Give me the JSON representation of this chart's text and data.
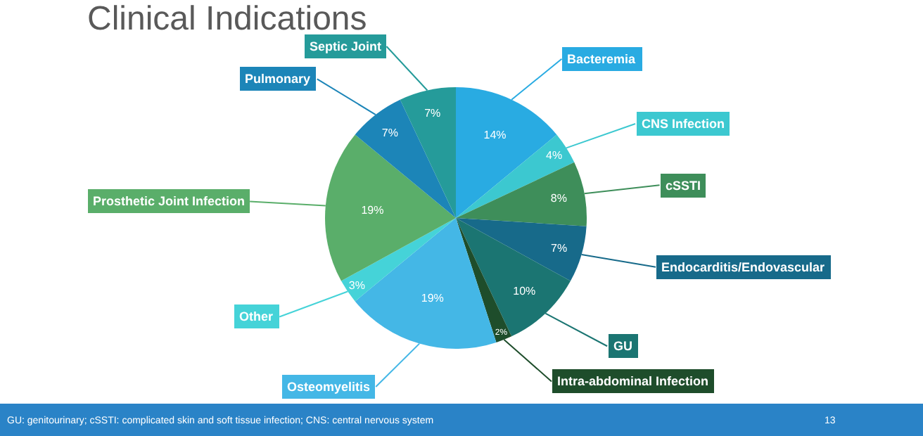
{
  "chart_data": {
    "type": "pie",
    "title": "Clinical Indications",
    "categories": [
      "Bacteremia",
      "CNS Infection",
      "cSSTI",
      "Endocarditis/Endovascular",
      "GU",
      "Intra-abdominal Infection",
      "Osteomyelitis",
      "Other",
      "Prosthetic Joint Infection",
      "Pulmonary",
      "Septic Joint"
    ],
    "values": [
      14,
      4,
      8,
      7,
      10,
      2,
      19,
      3,
      19,
      7,
      7
    ],
    "value_labels": [
      "14%",
      "4%",
      "8%",
      "7%",
      "10%",
      "2%",
      "19%",
      "3%",
      "19%",
      "7%",
      "7%"
    ],
    "colors": [
      "#29abe2",
      "#3cc8d0",
      "#3e8e5a",
      "#176a8a",
      "#1b7572",
      "#1e4d2b",
      "#44b7e6",
      "#45d3d8",
      "#5aae6a",
      "#1c85b8",
      "#259b9a"
    ],
    "annotations": [
      "GU: genitourinary; cSSTI: complicated skin and soft tissue infection; CNS: central nervous system",
      "13"
    ],
    "legend": false
  }
}
